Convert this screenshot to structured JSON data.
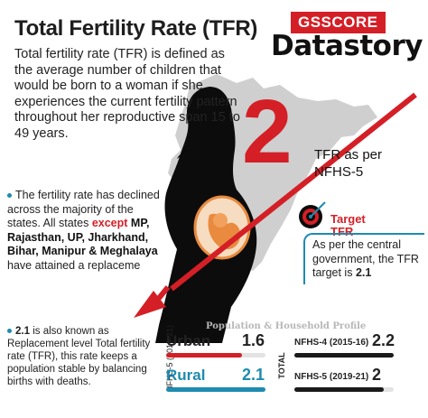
{
  "header": {
    "title": "Total Fertility Rate (TFR)",
    "definition": "Total fertility rate (TFR) is defined as the average number of children that would be born to a woman if she experiences the current fertility pattern throughout her reproductive span 15 to 49 years."
  },
  "logo": {
    "top": "GSSCORE",
    "bottom": "Datastory"
  },
  "highlight": {
    "value": "2",
    "label": "TFR as per NFHS-5"
  },
  "bullet1": {
    "text_a": "The fertility rate has declined across the majority of the states. All states",
    "except": "except",
    "states": "MP, Rajasthan, UP, Jharkhand, Bihar, Manipur & Meghalaya",
    "text_b": "have attained a replaceme"
  },
  "target": {
    "title_line1": "Target",
    "title_line2": "TFR",
    "text": "As per the central government, the TFR target is",
    "value": "2.1"
  },
  "bullet2": {
    "value": "2.1",
    "text": "is also known as Replacement level Total fertility rate (TFR), this rate keeps a population stable by balancing births with deaths."
  },
  "profile": {
    "title": "Population & Household Profile",
    "left_axis": "NFHS-5 (2019-21)",
    "rows": [
      {
        "label": "Urban",
        "value": "1.6",
        "fill": 0.76
      },
      {
        "label": "Rural",
        "value": "2.1",
        "fill": 1.0
      }
    ],
    "right_axis": "TOTAL",
    "totals": [
      {
        "label": "NFHS-4 (2015-16)",
        "value": "2.2",
        "fill": 1.0
      },
      {
        "label": "NFHS-5 (2019-21)",
        "value": "2",
        "fill": 0.9
      }
    ]
  },
  "colors": {
    "accent_red": "#d41f26",
    "accent_blue": "#1e8bb0",
    "map_grey": "#cfcfcf",
    "silhouette": "#0c0c0c",
    "fetus_orange": "#e98a3e"
  }
}
